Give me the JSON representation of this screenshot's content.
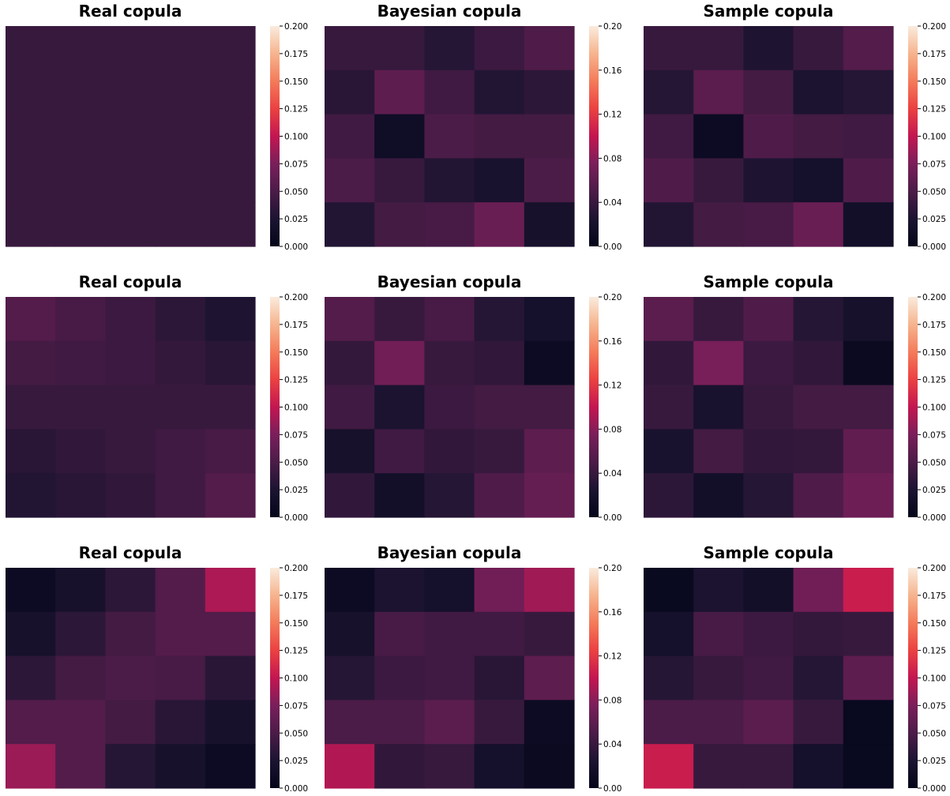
{
  "chart_data": [
    {
      "type": "heatmap",
      "title": "Real copula",
      "vmin": 0,
      "vmax": 0.2,
      "colorbar_ticks": [
        "0.000",
        "0.025",
        "0.050",
        "0.075",
        "0.100",
        "0.125",
        "0.150",
        "0.175",
        "0.200"
      ],
      "values": [
        [
          0.04,
          0.04,
          0.04,
          0.04,
          0.04
        ],
        [
          0.04,
          0.04,
          0.04,
          0.04,
          0.04
        ],
        [
          0.04,
          0.04,
          0.04,
          0.04,
          0.04
        ],
        [
          0.04,
          0.04,
          0.04,
          0.04,
          0.04
        ],
        [
          0.04,
          0.04,
          0.04,
          0.04,
          0.04
        ]
      ]
    },
    {
      "type": "heatmap",
      "title": "Bayesian copula",
      "vmin": 0,
      "vmax": 0.2,
      "colorbar_ticks": [
        "0.00",
        "0.04",
        "0.08",
        "0.12",
        "0.16",
        "0.20"
      ],
      "values": [
        [
          0.04,
          0.04,
          0.03,
          0.042,
          0.052
        ],
        [
          0.032,
          0.06,
          0.044,
          0.028,
          0.034
        ],
        [
          0.044,
          0.013,
          0.05,
          0.046,
          0.046
        ],
        [
          0.05,
          0.04,
          0.028,
          0.022,
          0.05
        ],
        [
          0.028,
          0.046,
          0.048,
          0.066,
          0.02
        ]
      ]
    },
    {
      "type": "heatmap",
      "title": "Sample copula",
      "vmin": 0,
      "vmax": 0.2,
      "colorbar_ticks": [
        "0.000",
        "0.025",
        "0.050",
        "0.075",
        "0.100",
        "0.125",
        "0.150",
        "0.175",
        "0.200"
      ],
      "values": [
        [
          0.04,
          0.04,
          0.026,
          0.04,
          0.054
        ],
        [
          0.03,
          0.058,
          0.046,
          0.024,
          0.03
        ],
        [
          0.044,
          0.01,
          0.052,
          0.046,
          0.044
        ],
        [
          0.052,
          0.04,
          0.026,
          0.018,
          0.052
        ],
        [
          0.028,
          0.046,
          0.048,
          0.066,
          0.016
        ]
      ]
    },
    {
      "type": "heatmap",
      "title": "Real copula",
      "vmin": 0,
      "vmax": 0.2,
      "colorbar_ticks": [
        "0.000",
        "0.025",
        "0.050",
        "0.075",
        "0.100",
        "0.125",
        "0.150",
        "0.175",
        "0.200"
      ],
      "values": [
        [
          0.054,
          0.048,
          0.042,
          0.034,
          0.026
        ],
        [
          0.046,
          0.044,
          0.042,
          0.038,
          0.032
        ],
        [
          0.04,
          0.04,
          0.04,
          0.04,
          0.04
        ],
        [
          0.032,
          0.036,
          0.04,
          0.044,
          0.048
        ],
        [
          0.028,
          0.032,
          0.036,
          0.044,
          0.054
        ]
      ]
    },
    {
      "type": "heatmap",
      "title": "Bayesian copula",
      "vmin": 0,
      "vmax": 0.2,
      "colorbar_ticks": [
        "0.00",
        "0.04",
        "0.08",
        "0.12",
        "0.16",
        "0.20"
      ],
      "values": [
        [
          0.054,
          0.04,
          0.048,
          0.03,
          0.018
        ],
        [
          0.038,
          0.07,
          0.04,
          0.036,
          0.01
        ],
        [
          0.044,
          0.024,
          0.042,
          0.046,
          0.046
        ],
        [
          0.02,
          0.044,
          0.036,
          0.04,
          0.06
        ],
        [
          0.036,
          0.016,
          0.03,
          0.052,
          0.064
        ]
      ]
    },
    {
      "type": "heatmap",
      "title": "Sample copula",
      "vmin": 0,
      "vmax": 0.2,
      "colorbar_ticks": [
        "0.000",
        "0.025",
        "0.050",
        "0.075",
        "0.100",
        "0.125",
        "0.150",
        "0.175",
        "0.200"
      ],
      "values": [
        [
          0.058,
          0.04,
          0.052,
          0.03,
          0.02
        ],
        [
          0.036,
          0.074,
          0.042,
          0.036,
          0.008
        ],
        [
          0.04,
          0.022,
          0.04,
          0.046,
          0.046
        ],
        [
          0.022,
          0.046,
          0.036,
          0.038,
          0.062
        ],
        [
          0.034,
          0.016,
          0.03,
          0.052,
          0.068
        ]
      ]
    },
    {
      "type": "heatmap",
      "title": "Real copula",
      "vmin": 0,
      "vmax": 0.2,
      "colorbar_ticks": [
        "0.000",
        "0.025",
        "0.050",
        "0.075",
        "0.100",
        "0.125",
        "0.150",
        "0.175",
        "0.200"
      ],
      "values": [
        [
          0.01,
          0.02,
          0.034,
          0.054,
          0.092
        ],
        [
          0.02,
          0.034,
          0.046,
          0.054,
          0.054
        ],
        [
          0.034,
          0.046,
          0.05,
          0.048,
          0.032
        ],
        [
          0.054,
          0.054,
          0.046,
          0.032,
          0.02
        ],
        [
          0.086,
          0.054,
          0.03,
          0.02,
          0.01
        ]
      ]
    },
    {
      "type": "heatmap",
      "title": "Bayesian copula",
      "vmin": 0,
      "vmax": 0.2,
      "colorbar_ticks": [
        "0.00",
        "0.04",
        "0.08",
        "0.12",
        "0.16",
        "0.20"
      ],
      "values": [
        [
          0.01,
          0.024,
          0.018,
          0.07,
          0.088
        ],
        [
          0.02,
          0.048,
          0.044,
          0.044,
          0.04
        ],
        [
          0.03,
          0.042,
          0.044,
          0.032,
          0.06
        ],
        [
          0.05,
          0.05,
          0.058,
          0.04,
          0.01
        ],
        [
          0.094,
          0.036,
          0.04,
          0.018,
          0.008
        ]
      ]
    },
    {
      "type": "heatmap",
      "title": "Sample copula",
      "vmin": 0,
      "vmax": 0.2,
      "colorbar_ticks": [
        "0.000",
        "0.025",
        "0.050",
        "0.075",
        "0.100",
        "0.125",
        "0.150",
        "0.175",
        "0.200"
      ],
      "values": [
        [
          0.006,
          0.024,
          0.016,
          0.07,
          0.104
        ],
        [
          0.018,
          0.048,
          0.042,
          0.038,
          0.04
        ],
        [
          0.03,
          0.04,
          0.044,
          0.03,
          0.06
        ],
        [
          0.05,
          0.05,
          0.058,
          0.04,
          0.006
        ],
        [
          0.104,
          0.04,
          0.04,
          0.018,
          0.006
        ]
      ]
    }
  ],
  "colors": {
    "colormap": "rocket"
  }
}
